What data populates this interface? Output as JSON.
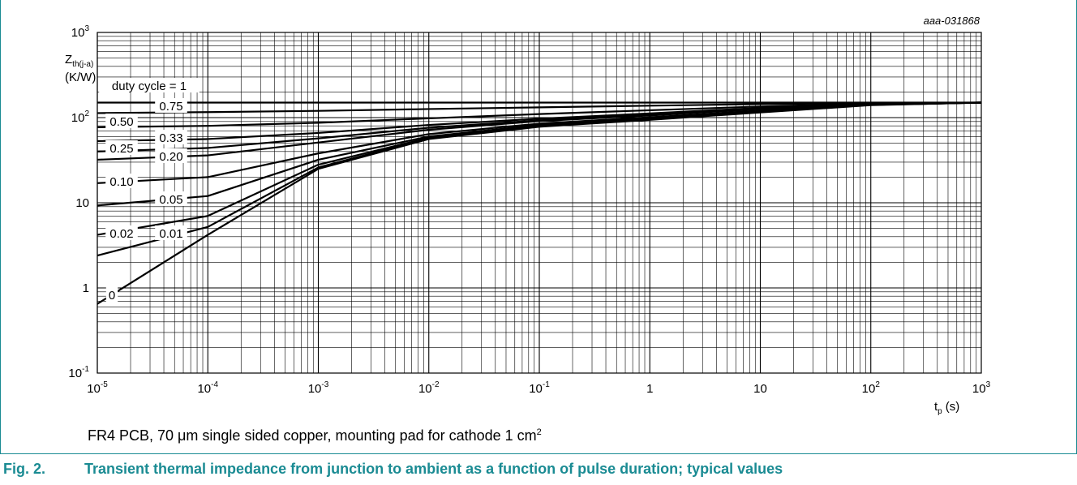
{
  "figure": {
    "reference": "aaa-031868",
    "note": "FR4 PCB, 70 μm single sided copper, mounting pad for cathode 1 cm",
    "note_sup": "2",
    "fig_number": "Fig. 2.",
    "caption": "Transient thermal impedance from junction to ambient as a function of pulse duration; typical values",
    "frame_color": "#1a8b93"
  },
  "chart_data": {
    "type": "line",
    "x_scale": "log",
    "y_scale": "log",
    "xlim": [
      1e-05,
      1000
    ],
    "ylim": [
      0.1,
      1000
    ],
    "grid": true,
    "title": "",
    "ylabel_main": "Z",
    "ylabel_sub": "th(j-a)",
    "yunit": "(K/W)",
    "xlabel_main": "t",
    "xlabel_sub": "p",
    "xunit": "(s)",
    "x_ticks": [
      {
        "base": "10",
        "exp": "-5"
      },
      {
        "base": "10",
        "exp": "-4"
      },
      {
        "base": "10",
        "exp": "-3"
      },
      {
        "base": "10",
        "exp": "-2"
      },
      {
        "base": "10",
        "exp": "-1"
      },
      {
        "base": "1",
        "exp": ""
      },
      {
        "base": "10",
        "exp": ""
      },
      {
        "base": "10",
        "exp": "2"
      },
      {
        "base": "10",
        "exp": "3"
      }
    ],
    "y_ticks": [
      {
        "base": "10",
        "exp": "-1"
      },
      {
        "base": "1",
        "exp": ""
      },
      {
        "base": "10",
        "exp": ""
      },
      {
        "base": "10",
        "exp": "2"
      },
      {
        "base": "10",
        "exp": "3"
      }
    ],
    "series": [
      {
        "name": "duty cycle = 1",
        "x": [
          1e-05,
          0.001,
          1,
          1000
        ],
        "y": [
          150,
          150,
          150,
          150
        ]
      },
      {
        "name": "0.75",
        "x": [
          1e-05,
          0.0001,
          0.001,
          0.01,
          0.1,
          1,
          10,
          100,
          1000
        ],
        "y": [
          113,
          116,
          120,
          126,
          132,
          138,
          144,
          148,
          150
        ]
      },
      {
        "name": "0.50",
        "x": [
          1e-05,
          0.0001,
          0.001,
          0.01,
          0.1,
          1,
          10,
          100,
          1000
        ],
        "y": [
          77,
          80,
          87,
          98,
          110,
          122,
          135,
          146,
          150
        ]
      },
      {
        "name": "0.33",
        "x": [
          1e-05,
          0.0001,
          0.001,
          0.01,
          0.1,
          1,
          10,
          100,
          1000
        ],
        "y": [
          53,
          56,
          66,
          82,
          97,
          112,
          130,
          145,
          150
        ]
      },
      {
        "name": "0.25",
        "x": [
          1e-05,
          0.0001,
          0.001,
          0.01,
          0.1,
          1,
          10,
          100,
          1000
        ],
        "y": [
          40,
          44,
          57,
          76,
          93,
          108,
          128,
          144,
          150
        ]
      },
      {
        "name": "0.20",
        "x": [
          1e-05,
          0.0001,
          0.001,
          0.01,
          0.1,
          1,
          10,
          100,
          1000
        ],
        "y": [
          32,
          36,
          51,
          72,
          91,
          106,
          126,
          144,
          150
        ]
      },
      {
        "name": "0.10",
        "x": [
          1e-05,
          0.0001,
          0.001,
          0.01,
          0.1,
          1,
          10,
          100,
          1000
        ],
        "y": [
          17,
          20,
          38,
          64,
          85,
          101,
          121,
          143,
          150
        ]
      },
      {
        "name": "0.05",
        "x": [
          1e-05,
          0.0001,
          0.001,
          0.01,
          0.1,
          1,
          10,
          100,
          1000
        ],
        "y": [
          9.3,
          12,
          32,
          60,
          82,
          98,
          119,
          142,
          150
        ]
      },
      {
        "name": "0.02",
        "x": [
          1e-05,
          0.0001,
          0.001,
          0.01,
          0.1,
          1,
          10,
          100,
          1000
        ],
        "y": [
          4.2,
          7,
          28,
          58,
          80,
          96,
          117,
          141,
          150
        ]
      },
      {
        "name": "0.01",
        "x": [
          1e-05,
          0.0001,
          0.001,
          0.01,
          0.1,
          1,
          10,
          100,
          1000
        ],
        "y": [
          2.4,
          5.2,
          26,
          57,
          79,
          95,
          116,
          141,
          150
        ]
      },
      {
        "name": "0",
        "x": [
          1e-05,
          0.0001,
          0.001,
          0.01,
          0.1,
          1,
          10,
          100,
          1000
        ],
        "y": [
          0.65,
          4.2,
          25,
          56,
          78,
          94,
          115,
          140,
          150
        ]
      }
    ]
  }
}
